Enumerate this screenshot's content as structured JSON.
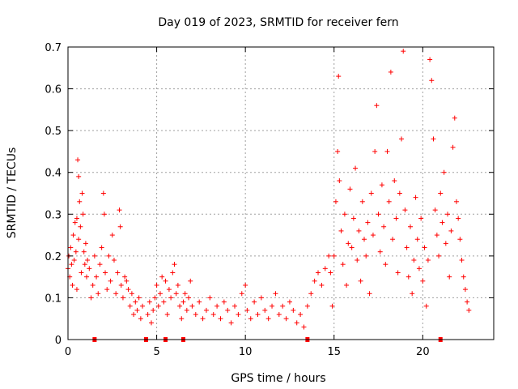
{
  "chart_data": {
    "type": "scatter",
    "title": "Day 019 of 2023, SRMTID for receiver fern",
    "xlabel": "GPS time / hours",
    "ylabel": "SRMTID / TECUs",
    "xlim": [
      0,
      24
    ],
    "ylim": [
      0,
      0.7
    ],
    "xticks": [
      0,
      5,
      10,
      15,
      20
    ],
    "xtick_labels": [
      "0",
      "5",
      "10",
      "15",
      "20"
    ],
    "yticks": [
      0,
      0.1,
      0.2,
      0.3,
      0.4,
      0.5,
      0.6,
      0.7
    ],
    "ytick_labels": [
      "0",
      "0.1",
      "0.2",
      "0.3",
      "0.4",
      "0.5",
      "0.6",
      "0.7"
    ],
    "grid": true,
    "marker": "+",
    "color": "#ff0000",
    "zero_markers_hours": [
      1.5,
      4.4,
      5.5,
      6.5,
      13.5,
      21.0
    ],
    "series": [
      {
        "name": "SRMTID",
        "points": [
          [
            0.0,
            0.17
          ],
          [
            0.05,
            0.2
          ],
          [
            0.1,
            0.15
          ],
          [
            0.15,
            0.22
          ],
          [
            0.2,
            0.18
          ],
          [
            0.25,
            0.13
          ],
          [
            0.3,
            0.25
          ],
          [
            0.35,
            0.19
          ],
          [
            0.4,
            0.28
          ],
          [
            0.45,
            0.21
          ],
          [
            0.5,
            0.12
          ],
          [
            0.5,
            0.29
          ],
          [
            0.55,
            0.43
          ],
          [
            0.6,
            0.39
          ],
          [
            0.6,
            0.24
          ],
          [
            0.65,
            0.33
          ],
          [
            0.7,
            0.27
          ],
          [
            0.75,
            0.16
          ],
          [
            0.8,
            0.35
          ],
          [
            0.85,
            0.3
          ],
          [
            0.9,
            0.21
          ],
          [
            0.95,
            0.18
          ],
          [
            1.0,
            0.23
          ],
          [
            1.05,
            0.15
          ],
          [
            1.1,
            0.19
          ],
          [
            1.2,
            0.17
          ],
          [
            1.3,
            0.1
          ],
          [
            1.4,
            0.13
          ],
          [
            1.5,
            0.2
          ],
          [
            1.6,
            0.15
          ],
          [
            1.7,
            0.11
          ],
          [
            1.8,
            0.18
          ],
          [
            1.9,
            0.22
          ],
          [
            2.0,
            0.35
          ],
          [
            2.05,
            0.3
          ],
          [
            2.1,
            0.16
          ],
          [
            2.2,
            0.12
          ],
          [
            2.3,
            0.2
          ],
          [
            2.4,
            0.14
          ],
          [
            2.5,
            0.25
          ],
          [
            2.6,
            0.19
          ],
          [
            2.7,
            0.11
          ],
          [
            2.8,
            0.16
          ],
          [
            2.9,
            0.31
          ],
          [
            2.95,
            0.27
          ],
          [
            3.0,
            0.13
          ],
          [
            3.1,
            0.1
          ],
          [
            3.2,
            0.15
          ],
          [
            3.3,
            0.14
          ],
          [
            3.4,
            0.12
          ],
          [
            3.5,
            0.08
          ],
          [
            3.6,
            0.11
          ],
          [
            3.7,
            0.06
          ],
          [
            3.8,
            0.09
          ],
          [
            3.9,
            0.07
          ],
          [
            4.0,
            0.1
          ],
          [
            4.1,
            0.05
          ],
          [
            4.2,
            0.08
          ],
          [
            4.5,
            0.06
          ],
          [
            4.6,
            0.09
          ],
          [
            4.7,
            0.04
          ],
          [
            4.8,
            0.07
          ],
          [
            4.9,
            0.1
          ],
          [
            5.0,
            0.13
          ],
          [
            5.1,
            0.08
          ],
          [
            5.2,
            0.11
          ],
          [
            5.3,
            0.15
          ],
          [
            5.4,
            0.09
          ],
          [
            5.5,
            0.14
          ],
          [
            5.6,
            0.06
          ],
          [
            5.7,
            0.12
          ],
          [
            5.8,
            0.1
          ],
          [
            5.9,
            0.16
          ],
          [
            6.0,
            0.18
          ],
          [
            6.1,
            0.11
          ],
          [
            6.2,
            0.13
          ],
          [
            6.3,
            0.08
          ],
          [
            6.4,
            0.05
          ],
          [
            6.5,
            0.09
          ],
          [
            6.6,
            0.11
          ],
          [
            6.7,
            0.07
          ],
          [
            6.8,
            0.1
          ],
          [
            6.9,
            0.14
          ],
          [
            7.0,
            0.08
          ],
          [
            7.2,
            0.06
          ],
          [
            7.4,
            0.09
          ],
          [
            7.6,
            0.05
          ],
          [
            7.8,
            0.07
          ],
          [
            8.0,
            0.1
          ],
          [
            8.2,
            0.06
          ],
          [
            8.4,
            0.08
          ],
          [
            8.6,
            0.05
          ],
          [
            8.8,
            0.09
          ],
          [
            9.0,
            0.07
          ],
          [
            9.2,
            0.04
          ],
          [
            9.4,
            0.08
          ],
          [
            9.6,
            0.06
          ],
          [
            9.8,
            0.11
          ],
          [
            10.0,
            0.13
          ],
          [
            10.1,
            0.07
          ],
          [
            10.3,
            0.05
          ],
          [
            10.5,
            0.09
          ],
          [
            10.7,
            0.06
          ],
          [
            10.9,
            0.1
          ],
          [
            11.1,
            0.07
          ],
          [
            11.3,
            0.05
          ],
          [
            11.5,
            0.08
          ],
          [
            11.7,
            0.11
          ],
          [
            11.9,
            0.06
          ],
          [
            12.1,
            0.08
          ],
          [
            12.3,
            0.05
          ],
          [
            12.5,
            0.09
          ],
          [
            12.7,
            0.07
          ],
          [
            12.9,
            0.04
          ],
          [
            13.1,
            0.06
          ],
          [
            13.3,
            0.03
          ],
          [
            13.5,
            0.08
          ],
          [
            13.7,
            0.11
          ],
          [
            13.9,
            0.14
          ],
          [
            14.1,
            0.16
          ],
          [
            14.3,
            0.13
          ],
          [
            14.5,
            0.17
          ],
          [
            14.7,
            0.2
          ],
          [
            14.8,
            0.16
          ],
          [
            14.9,
            0.08
          ],
          [
            15.0,
            0.2
          ],
          [
            15.1,
            0.33
          ],
          [
            15.2,
            0.45
          ],
          [
            15.25,
            0.63
          ],
          [
            15.3,
            0.38
          ],
          [
            15.4,
            0.26
          ],
          [
            15.5,
            0.18
          ],
          [
            15.6,
            0.3
          ],
          [
            15.7,
            0.13
          ],
          [
            15.8,
            0.23
          ],
          [
            15.9,
            0.36
          ],
          [
            16.0,
            0.22
          ],
          [
            16.1,
            0.29
          ],
          [
            16.2,
            0.41
          ],
          [
            16.3,
            0.19
          ],
          [
            16.4,
            0.26
          ],
          [
            16.5,
            0.14
          ],
          [
            16.6,
            0.33
          ],
          [
            16.7,
            0.24
          ],
          [
            16.8,
            0.2
          ],
          [
            16.9,
            0.28
          ],
          [
            17.0,
            0.11
          ],
          [
            17.1,
            0.35
          ],
          [
            17.2,
            0.25
          ],
          [
            17.3,
            0.45
          ],
          [
            17.4,
            0.56
          ],
          [
            17.5,
            0.3
          ],
          [
            17.6,
            0.21
          ],
          [
            17.7,
            0.37
          ],
          [
            17.8,
            0.27
          ],
          [
            17.9,
            0.18
          ],
          [
            18.0,
            0.45
          ],
          [
            18.1,
            0.33
          ],
          [
            18.2,
            0.64
          ],
          [
            18.3,
            0.24
          ],
          [
            18.4,
            0.38
          ],
          [
            18.5,
            0.29
          ],
          [
            18.6,
            0.16
          ],
          [
            18.7,
            0.35
          ],
          [
            18.8,
            0.48
          ],
          [
            18.9,
            0.69
          ],
          [
            19.0,
            0.31
          ],
          [
            19.1,
            0.22
          ],
          [
            19.2,
            0.15
          ],
          [
            19.3,
            0.27
          ],
          [
            19.4,
            0.11
          ],
          [
            19.5,
            0.19
          ],
          [
            19.6,
            0.34
          ],
          [
            19.7,
            0.24
          ],
          [
            19.8,
            0.17
          ],
          [
            19.9,
            0.29
          ],
          [
            20.0,
            0.14
          ],
          [
            20.1,
            0.22
          ],
          [
            20.2,
            0.08
          ],
          [
            20.3,
            0.19
          ],
          [
            20.4,
            0.67
          ],
          [
            20.5,
            0.62
          ],
          [
            20.6,
            0.48
          ],
          [
            20.7,
            0.31
          ],
          [
            20.8,
            0.25
          ],
          [
            20.9,
            0.2
          ],
          [
            21.0,
            0.35
          ],
          [
            21.1,
            0.28
          ],
          [
            21.2,
            0.4
          ],
          [
            21.3,
            0.23
          ],
          [
            21.4,
            0.3
          ],
          [
            21.5,
            0.15
          ],
          [
            21.6,
            0.26
          ],
          [
            21.7,
            0.46
          ],
          [
            21.8,
            0.53
          ],
          [
            21.9,
            0.33
          ],
          [
            22.0,
            0.29
          ],
          [
            22.1,
            0.24
          ],
          [
            22.2,
            0.19
          ],
          [
            22.3,
            0.15
          ],
          [
            22.4,
            0.12
          ],
          [
            22.5,
            0.09
          ],
          [
            22.6,
            0.07
          ]
        ]
      }
    ]
  }
}
